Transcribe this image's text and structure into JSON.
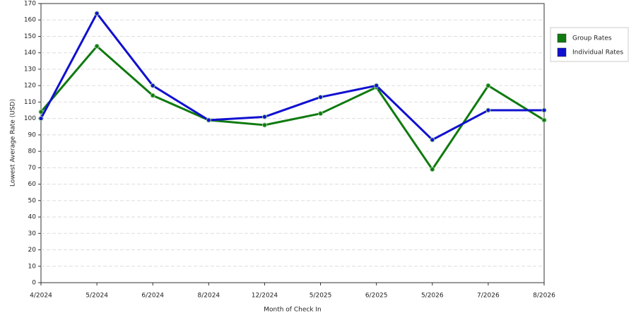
{
  "chart_data": {
    "type": "line",
    "x_label": "Month of Check In",
    "y_label": "Lowest Average Rate (USD)",
    "categories": [
      "4/2024",
      "5/2024",
      "6/2024",
      "8/2024",
      "12/2024",
      "5/2025",
      "6/2025",
      "5/2026",
      "7/2026",
      "8/2026"
    ],
    "series": [
      {
        "name": "Group Rates",
        "color": "#0f7a0f",
        "values": [
          104,
          144,
          114,
          99,
          96,
          103,
          119,
          69,
          120,
          99
        ]
      },
      {
        "name": "Individual Rates",
        "color": "#1010d0",
        "values": [
          100,
          164,
          120,
          99,
          101,
          113,
          120,
          87,
          105,
          105
        ]
      }
    ],
    "ylim": [
      0,
      170
    ],
    "yticks": [
      0,
      10,
      20,
      30,
      40,
      50,
      60,
      70,
      80,
      90,
      100,
      110,
      120,
      130,
      140,
      150,
      160,
      170
    ],
    "grid": true,
    "legend": "right"
  }
}
